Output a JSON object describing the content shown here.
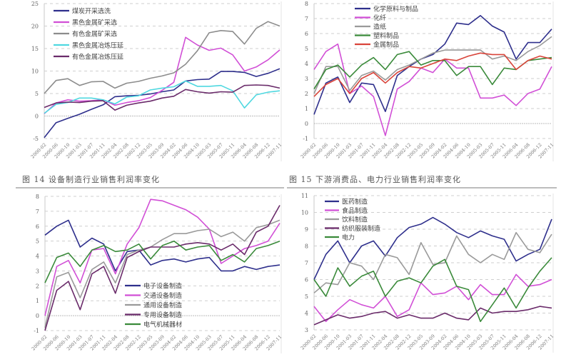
{
  "captions": {
    "fig14": "图 14 设备制造行业销售利润率变化",
    "fig15": "图 15 下游消费品、电力行业销售利润率变化"
  },
  "x_ticks": [
    "2000-02",
    "2000-06",
    "2000-10",
    "2001-03",
    "2001-07",
    "2001-11",
    "2002-04",
    "2002-08",
    "2002-12",
    "2003-05",
    "2003-09",
    "2004-02",
    "2004-06",
    "2004-10",
    "2005-03",
    "2005-07",
    "2005-11",
    "2006-04",
    "2006-08",
    "2006-12",
    "2007-11"
  ],
  "chart_data": [
    {
      "id": "mining",
      "type": "line",
      "title": "",
      "xlabel": "",
      "ylabel": "",
      "ylim": [
        -5,
        25
      ],
      "yticks": [
        -5,
        0,
        5,
        10,
        15,
        20,
        25
      ],
      "grid": true,
      "legend_position": "upper-left",
      "categories_ref": "x_ticks",
      "series": [
        {
          "name": "煤炭开采选洗",
          "color": "#2e2f8c",
          "values": [
            -4.8,
            -1.5,
            -0.5,
            0.4,
            1.5,
            2.5,
            4.3,
            4.5,
            4.6,
            4.9,
            5.4,
            5.8,
            7.8,
            8.1,
            8.2,
            9.9,
            9.9,
            9.7,
            8.8,
            9.5,
            10.5
          ]
        },
        {
          "name": "黑色金属矿采选",
          "color": "#d14fd6",
          "values": [
            0.5,
            2.9,
            3.6,
            3.3,
            3.4,
            3.6,
            2.4,
            3.0,
            3.4,
            4.1,
            5.7,
            7.5,
            17.5,
            15.8,
            14.6,
            15.1,
            13.6,
            10.0,
            10.9,
            12.5,
            14.7
          ]
        },
        {
          "name": "有色金属矿采选",
          "color": "#8c8c8c",
          "values": [
            5.0,
            7.9,
            8.3,
            6.8,
            7.6,
            7.7,
            6.2,
            7.3,
            7.7,
            8.4,
            8.9,
            9.6,
            11.5,
            14.5,
            18.5,
            19.0,
            18.8,
            16.0,
            19.5,
            21.0,
            20.0
          ]
        },
        {
          "name": "黑色金属冶炼压延",
          "color": "#4fd8e0",
          "values": [
            0.6,
            2.6,
            3.0,
            4.0,
            4.0,
            3.6,
            2.7,
            4.2,
            4.5,
            5.8,
            6.2,
            6.5,
            7.8,
            6.6,
            6.6,
            6.8,
            5.6,
            1.8,
            4.7,
            5.3,
            5.6
          ]
        },
        {
          "name": "有色金属冶炼压延",
          "color": "#6a2b6a",
          "values": [
            1.9,
            2.9,
            3.1,
            3.0,
            3.3,
            3.4,
            1.3,
            2.4,
            2.9,
            3.3,
            4.0,
            4.4,
            5.9,
            5.4,
            5.1,
            5.4,
            5.3,
            6.8,
            6.9,
            6.8,
            6.2
          ]
        }
      ]
    },
    {
      "id": "downstream_materials",
      "type": "line",
      "title": "",
      "xlabel": "",
      "ylabel": "",
      "ylim": [
        -1,
        8
      ],
      "yticks": [
        -1,
        0,
        1,
        2,
        3,
        4,
        5,
        6,
        7,
        8
      ],
      "grid": true,
      "legend_position": "upper-left",
      "categories_ref": "x_ticks",
      "series": [
        {
          "name": "化学原料与制品",
          "color": "#2e2f8c",
          "values": [
            0.6,
            2.7,
            3.1,
            1.4,
            2.7,
            2.6,
            0.8,
            3.2,
            3.8,
            4.3,
            4.6,
            5.3,
            6.7,
            6.6,
            7.2,
            6.5,
            6.1,
            4.3,
            5.4,
            5.4,
            6.3
          ]
        },
        {
          "name": "化纤",
          "color": "#d14fd6",
          "values": [
            3.6,
            4.8,
            5.3,
            2.0,
            2.5,
            1.8,
            -0.8,
            2.3,
            2.8,
            3.7,
            3.4,
            4.3,
            3.7,
            3.7,
            1.7,
            1.7,
            1.9,
            1.2,
            2.0,
            2.3,
            3.8
          ]
        },
        {
          "name": "造纸",
          "color": "#9a9a9a",
          "values": [
            2.0,
            3.8,
            3.8,
            2.2,
            3.2,
            3.5,
            2.9,
            3.6,
            3.9,
            4.3,
            4.7,
            4.9,
            4.9,
            4.9,
            4.9,
            4.3,
            4.5,
            4.2,
            4.8,
            5.2,
            5.8
          ]
        },
        {
          "name": "塑料制品",
          "color": "#3a8a3a",
          "values": [
            2.3,
            3.6,
            3.9,
            3.1,
            3.9,
            4.4,
            3.6,
            4.6,
            4.8,
            3.9,
            4.2,
            4.2,
            3.2,
            3.8,
            3.8,
            2.6,
            3.7,
            3.6,
            4.2,
            4.3,
            4.4
          ]
        },
        {
          "name": "金属制品",
          "color": "#d9443a",
          "values": [
            1.8,
            2.6,
            3.0,
            2.0,
            3.0,
            3.4,
            2.7,
            3.4,
            3.8,
            3.7,
            4.0,
            4.3,
            4.2,
            4.5,
            4.7,
            4.6,
            4.6,
            3.6,
            4.2,
            4.5,
            4.3
          ]
        }
      ]
    },
    {
      "id": "equipment",
      "type": "line",
      "title": "",
      "xlabel": "",
      "ylabel": "",
      "ylim": [
        -1,
        8
      ],
      "yticks": [
        -1,
        0,
        1,
        2,
        3,
        4,
        5,
        6,
        7,
        8
      ],
      "grid": true,
      "legend_position": "lower-center",
      "categories_ref": "x_ticks",
      "series": [
        {
          "name": "电子设备制造",
          "color": "#2e2f8c",
          "values": [
            5.4,
            6.0,
            6.4,
            4.6,
            5.2,
            4.8,
            3.0,
            4.3,
            4.4,
            3.4,
            3.7,
            3.8,
            3.6,
            3.8,
            3.9,
            3.0,
            3.0,
            3.3,
            3.1,
            3.3,
            3.4
          ]
        },
        {
          "name": "交通设备制造",
          "color": "#d14fd6",
          "values": [
            0.0,
            3.3,
            3.7,
            2.2,
            4.4,
            4.5,
            2.8,
            4.8,
            5.9,
            7.8,
            7.7,
            7.4,
            7.1,
            6.6,
            5.8,
            3.5,
            4.0,
            4.5,
            4.7,
            5.0,
            6.2
          ]
        },
        {
          "name": "通用设备制造",
          "color": "#9a9a9a",
          "values": [
            -0.8,
            2.6,
            2.9,
            1.2,
            3.1,
            3.6,
            2.2,
            4.1,
            4.4,
            4.6,
            5.1,
            5.5,
            5.5,
            5.7,
            5.8,
            5.3,
            5.6,
            5.0,
            5.9,
            6.1,
            6.4
          ]
        },
        {
          "name": "专用设备制造",
          "color": "#6a2b6a",
          "values": [
            -1.0,
            1.7,
            2.3,
            0.4,
            2.8,
            3.3,
            1.5,
            3.9,
            4.3,
            4.6,
            4.6,
            4.6,
            4.8,
            4.9,
            4.8,
            4.4,
            4.8,
            4.1,
            5.6,
            6.0,
            7.4
          ]
        },
        {
          "name": "电气机械器材",
          "color": "#3a8a3a",
          "values": [
            2.2,
            3.9,
            4.2,
            3.3,
            4.4,
            4.7,
            4.3,
            4.4,
            4.8,
            3.8,
            4.7,
            5.0,
            4.4,
            4.6,
            4.7,
            3.7,
            4.1,
            3.6,
            4.5,
            4.7,
            5.0
          ]
        }
      ]
    },
    {
      "id": "consumer_power",
      "type": "line",
      "title": "",
      "xlabel": "",
      "ylabel": "",
      "ylim": [
        3,
        11
      ],
      "yticks": [
        3,
        4,
        5,
        6,
        7,
        8,
        9,
        10,
        11
      ],
      "grid": true,
      "legend_position": "upper-left",
      "categories_ref": "x_ticks",
      "series": [
        {
          "name": "医药制造",
          "color": "#2e2f8c",
          "values": [
            6.0,
            7.5,
            8.3,
            7.0,
            8.0,
            8.3,
            7.4,
            8.5,
            9.1,
            9.3,
            9.7,
            9.3,
            8.8,
            8.5,
            8.9,
            8.6,
            8.4,
            7.1,
            7.5,
            7.8,
            9.6
          ]
        },
        {
          "name": "食品制造",
          "color": "#d14fd6",
          "values": [
            4.4,
            3.5,
            4.2,
            4.8,
            4.5,
            4.3,
            5.0,
            3.8,
            4.2,
            5.8,
            5.1,
            5.2,
            5.6,
            4.8,
            5.7,
            5.1,
            5.1,
            6.3,
            5.6,
            5.7,
            6.0
          ]
        },
        {
          "name": "饮料制造",
          "color": "#9a9a9a",
          "values": [
            5.2,
            5.8,
            5.7,
            7.0,
            6.8,
            6.0,
            7.5,
            7.3,
            6.3,
            8.2,
            6.9,
            7.0,
            8.6,
            7.5,
            7.0,
            7.5,
            7.2,
            8.8,
            7.8,
            7.6,
            8.7
          ]
        },
        {
          "name": "纺织服装制造",
          "color": "#6a2b6a",
          "values": [
            3.3,
            3.6,
            3.9,
            3.7,
            3.8,
            4.0,
            4.1,
            3.7,
            3.9,
            3.7,
            3.7,
            4.0,
            3.7,
            3.6,
            4.3,
            4.0,
            4.1,
            4.1,
            4.2,
            4.4,
            4.3
          ]
        },
        {
          "name": "电力",
          "color": "#3a8a3a",
          "values": [
            6.0,
            5.0,
            6.7,
            5.6,
            6.2,
            6.5,
            5.0,
            5.9,
            6.1,
            5.8,
            6.8,
            7.2,
            5.6,
            5.4,
            3.5,
            4.5,
            5.5,
            4.3,
            5.5,
            6.5,
            7.3
          ]
        }
      ]
    }
  ]
}
